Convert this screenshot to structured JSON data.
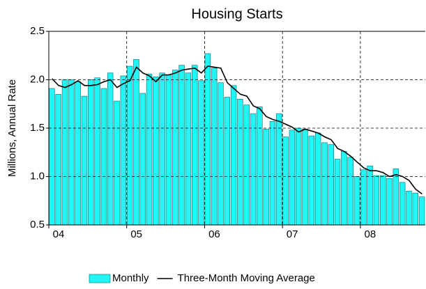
{
  "chart_data": {
    "type": "bar_line",
    "title": "Housing Starts",
    "y_label": "Millions, Annual Rate",
    "categories": [
      null,
      "04",
      null,
      null,
      null,
      null,
      null,
      null,
      null,
      null,
      null,
      null,
      null,
      "05",
      null,
      null,
      null,
      null,
      null,
      null,
      null,
      null,
      null,
      null,
      null,
      "06",
      null,
      null,
      null,
      null,
      null,
      null,
      null,
      null,
      null,
      null,
      null,
      "07",
      null,
      null,
      null,
      null,
      null,
      null,
      null,
      null,
      null,
      null,
      null,
      "08",
      null,
      null,
      null,
      null,
      null,
      null,
      null,
      null
    ],
    "series": [
      {
        "name": "Monthly",
        "type": "bar",
        "color": "#22f5f5",
        "values": [
          1.91,
          1.85,
          2.0,
          2.0,
          1.98,
          1.83,
          2.0,
          2.02,
          1.91,
          2.07,
          1.78,
          2.04,
          2.14,
          2.21,
          1.86,
          2.06,
          2.03,
          2.07,
          2.05,
          2.1,
          2.15,
          2.07,
          2.15,
          1.99,
          2.27,
          2.12,
          1.97,
          1.82,
          1.94,
          1.8,
          1.74,
          1.65,
          1.72,
          1.49,
          1.57,
          1.65,
          1.41,
          1.48,
          1.5,
          1.49,
          1.42,
          1.45,
          1.35,
          1.33,
          1.18,
          1.26,
          1.2,
          1.0,
          1.07,
          1.11,
          1.01,
          1.01,
          0.98,
          1.08,
          0.94,
          0.85,
          0.83,
          0.79
        ]
      },
      {
        "name": "Three-Month Moving Average",
        "type": "line",
        "color": "#000000",
        "values": [
          2.01,
          1.94,
          1.92,
          1.95,
          1.99,
          1.94,
          1.94,
          1.95,
          1.98,
          2.0,
          1.92,
          1.96,
          1.99,
          2.13,
          2.07,
          2.04,
          1.98,
          2.05,
          2.05,
          2.07,
          2.1,
          2.11,
          2.12,
          2.07,
          2.14,
          2.13,
          2.12,
          1.97,
          1.91,
          1.85,
          1.83,
          1.73,
          1.7,
          1.62,
          1.59,
          1.57,
          1.54,
          1.51,
          1.46,
          1.49,
          1.47,
          1.45,
          1.41,
          1.38,
          1.29,
          1.26,
          1.21,
          1.15,
          1.09,
          1.06,
          1.06,
          1.04,
          1.0,
          1.02,
          1.0,
          0.96,
          0.87,
          0.82
        ]
      }
    ],
    "ylim": [
      0.5,
      2.5
    ],
    "yticks": [
      0.5,
      {
        "value": 1,
        "label": "1.0"
      },
      1.5,
      {
        "value": 2,
        "label": "2.0"
      },
      2.5
    ],
    "grid": true
  }
}
